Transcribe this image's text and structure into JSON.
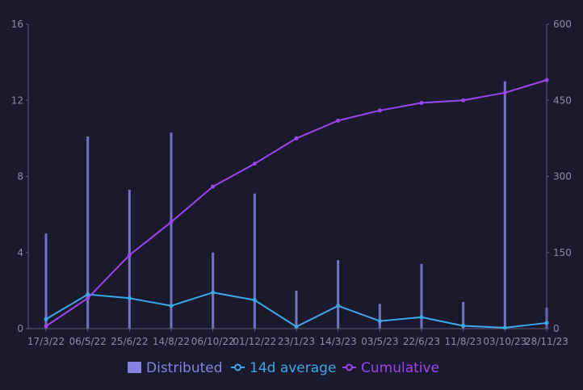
{
  "chart_data": {
    "type": "bar+line",
    "grid": false,
    "legend_position": "bottom-center",
    "x_tick_labels": [
      "17/3/22",
      "06/5/22",
      "25/6/22",
      "14/8/22",
      "06/10/22",
      "01/12/22",
      "23/1/23",
      "14/3/23",
      "03/5/23",
      "22/6/23",
      "11/8/23",
      "03/10/23",
      "28/11/23"
    ],
    "y_left": {
      "ticks": [
        "0",
        "4",
        "8",
        "12",
        "16"
      ],
      "range": [
        0,
        16
      ]
    },
    "y_right": {
      "ticks": [
        "0",
        "150",
        "300",
        "450",
        "600"
      ],
      "range": [
        0,
        600
      ]
    },
    "series": [
      {
        "name": "Distributed",
        "kind": "bar",
        "axis": "left",
        "color": "#8a80e0",
        "peaks": [
          {
            "x": "17/3/22",
            "value": 5
          },
          {
            "x": "06/5/22",
            "value": 10.1
          },
          {
            "x": "25/6/22",
            "value": 7.3
          },
          {
            "x": "14/8/22",
            "value": 10.3
          },
          {
            "x": "06/10/22",
            "value": 4.0
          },
          {
            "x": "01/12/22",
            "value": 7.1
          },
          {
            "x": "23/1/23",
            "value": 2.0
          },
          {
            "x": "14/3/23",
            "value": 3.6
          },
          {
            "x": "03/5/23",
            "value": 1.3
          },
          {
            "x": "22/6/23",
            "value": 3.4
          },
          {
            "x": "11/8/23",
            "value": 1.4
          },
          {
            "x": "03/10/23",
            "value": 13.0
          },
          {
            "x": "28/11/23",
            "value": 1.1
          }
        ]
      },
      {
        "name": "14d average",
        "kind": "line",
        "axis": "left",
        "color": "#3aa8ea",
        "points": [
          {
            "x": "17/3/22",
            "value": 0.5
          },
          {
            "x": "06/5/22",
            "value": 1.8
          },
          {
            "x": "25/6/22",
            "value": 1.6
          },
          {
            "x": "14/8/22",
            "value": 1.2
          },
          {
            "x": "06/10/22",
            "value": 1.9
          },
          {
            "x": "01/12/22",
            "value": 1.5
          },
          {
            "x": "23/1/23",
            "value": 0.1
          },
          {
            "x": "14/3/23",
            "value": 1.2
          },
          {
            "x": "03/5/23",
            "value": 0.4
          },
          {
            "x": "22/6/23",
            "value": 0.6
          },
          {
            "x": "11/8/23",
            "value": 0.15
          },
          {
            "x": "03/10/23",
            "value": 0.05
          },
          {
            "x": "28/11/23",
            "value": 0.3
          }
        ]
      },
      {
        "name": "Cumulative",
        "kind": "line",
        "axis": "right",
        "color": "#9b45f0",
        "points": [
          {
            "x": "17/3/22",
            "value": 5
          },
          {
            "x": "06/5/22",
            "value": 60
          },
          {
            "x": "25/6/22",
            "value": 145
          },
          {
            "x": "14/8/22",
            "value": 210
          },
          {
            "x": "06/10/22",
            "value": 280
          },
          {
            "x": "01/12/22",
            "value": 325
          },
          {
            "x": "23/1/23",
            "value": 375
          },
          {
            "x": "14/3/23",
            "value": 410
          },
          {
            "x": "03/5/23",
            "value": 430
          },
          {
            "x": "22/6/23",
            "value": 445
          },
          {
            "x": "11/8/23",
            "value": 450
          },
          {
            "x": "03/10/23",
            "value": 465
          },
          {
            "x": "28/11/23",
            "value": 490
          }
        ]
      }
    ]
  }
}
